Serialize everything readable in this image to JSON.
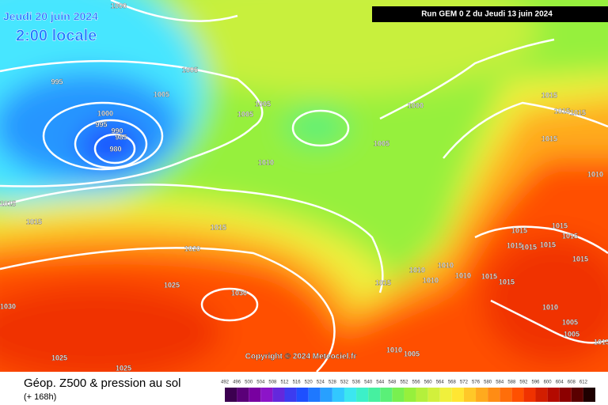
{
  "header": {
    "date": "Jeudi 20 juin 2024",
    "time": "2:00 locale",
    "run": "Run GEM 0 Z du Jeudi 13 juin 2024"
  },
  "copyright": "Copyright © 2024 Meteociel.fr",
  "footer": {
    "title": "Géop. Z500 & pression au sol",
    "subtitle": "(+ 168h)"
  },
  "legend": {
    "values": [
      492,
      496,
      500,
      504,
      508,
      512,
      516,
      520,
      524,
      528,
      532,
      536,
      540,
      544,
      548,
      552,
      556,
      560,
      564,
      568,
      572,
      576,
      580,
      584,
      588,
      592,
      596,
      600,
      604,
      608,
      612
    ],
    "colors": [
      "#3c0050",
      "#5a0078",
      "#7800a0",
      "#8c14c8",
      "#6428dc",
      "#3c3cf0",
      "#1e50ff",
      "#1e78ff",
      "#28a0ff",
      "#32c8ff",
      "#3ce6f0",
      "#3cf0c8",
      "#46f0a0",
      "#5af078",
      "#78f050",
      "#96f03c",
      "#b4f03c",
      "#d2f03c",
      "#f0f03c",
      "#ffe632",
      "#ffc828",
      "#ffaa1e",
      "#ff8c14",
      "#ff6e0a",
      "#ff5000",
      "#f03200",
      "#d21e00",
      "#b40a00",
      "#8c0000",
      "#5a0000",
      "#1e0000"
    ]
  },
  "isobars": [
    "1000",
    "995",
    "1005",
    "1005",
    "1000",
    "995",
    "990",
    "985",
    "980",
    "1005",
    "1005",
    "1000",
    "1005",
    "1010",
    "1015",
    "1015",
    "1015",
    "1020",
    "1025",
    "1030",
    "1030",
    "1025",
    "1025",
    "1015",
    "1015",
    "1015",
    "1015",
    "1010",
    "1015",
    "1015",
    "1015",
    "1015",
    "1015",
    "1015",
    "1015",
    "1010",
    "1010",
    "1010",
    "1010",
    "1015",
    "1015",
    "1015",
    "1010",
    "1005",
    "1005",
    "1010",
    "1005",
    "1015"
  ]
}
